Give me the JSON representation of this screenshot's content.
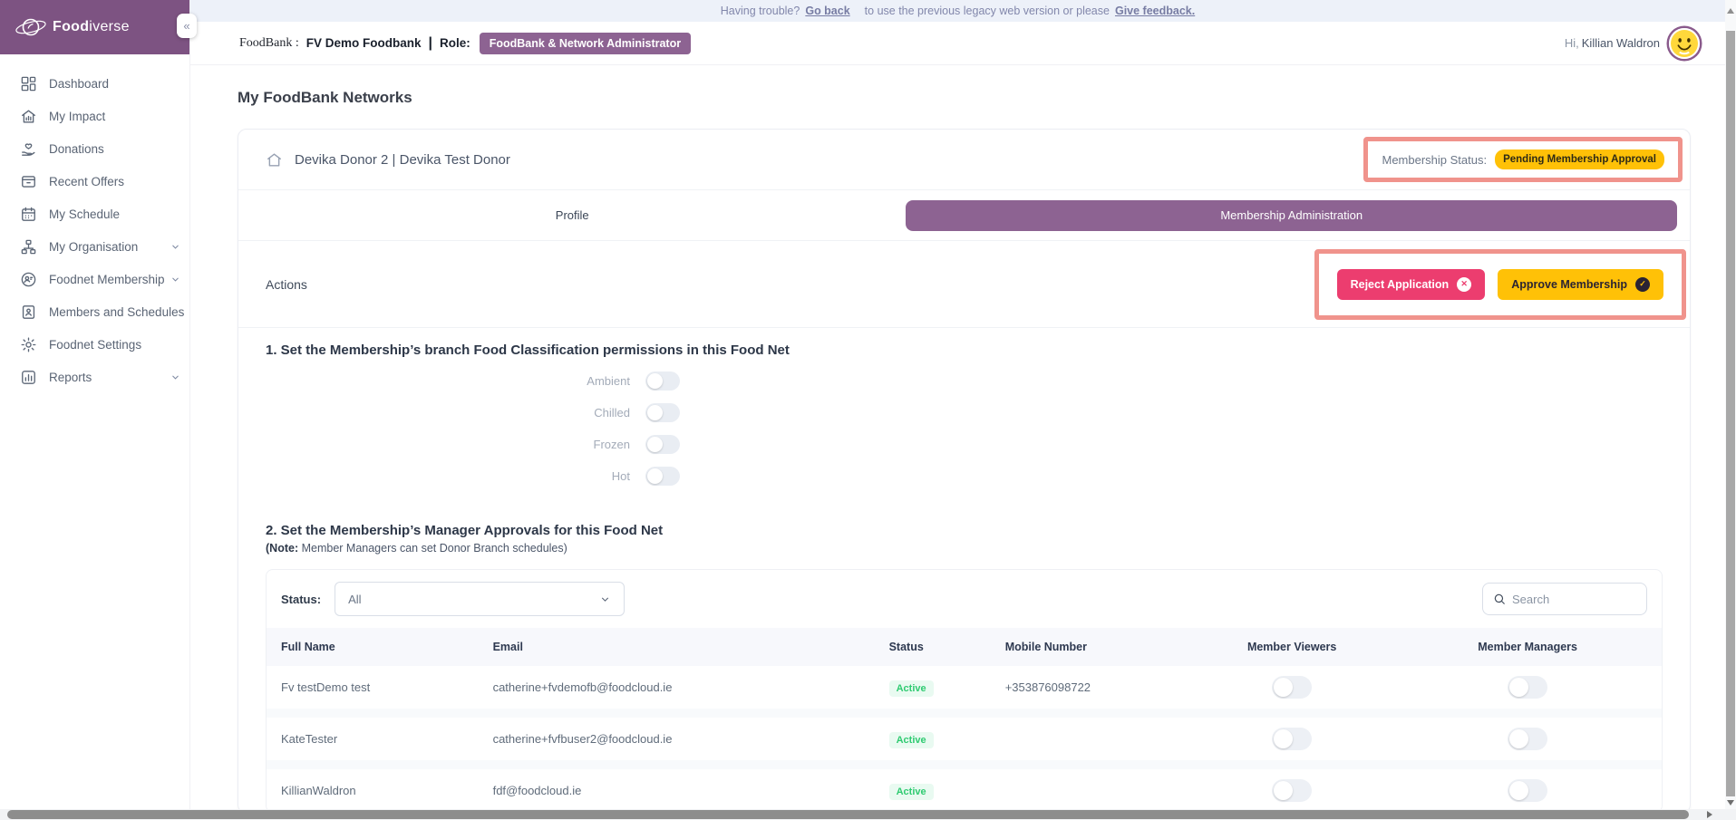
{
  "colors": {
    "brand-purple": "#7d5382",
    "badge-purple": "#8d6392",
    "tab-purple": "#8d6392",
    "accent-yellow": "#ffc107",
    "accent-pink": "#ec3d6f",
    "highlight-salmon": "#f0938c",
    "active-green": "#2fcb71",
    "active-green-bg": "#e9faf1"
  },
  "banner": {
    "prefix": "Having trouble?",
    "go_back_link": "Go back",
    "middle": "to use the previous legacy web version or please",
    "feedback_link": "Give feedback."
  },
  "sidebar": {
    "logo_bold": "Food",
    "logo_light": "iverse",
    "collapse_glyph": "«",
    "items": [
      {
        "label": "Dashboard",
        "icon": "dashboard-icon",
        "chevron": false
      },
      {
        "label": "My Impact",
        "icon": "impact-icon",
        "chevron": false
      },
      {
        "label": "Donations",
        "icon": "donations-icon",
        "chevron": false
      },
      {
        "label": "Recent Offers",
        "icon": "offers-icon",
        "chevron": false
      },
      {
        "label": "My Schedule",
        "icon": "schedule-icon",
        "chevron": false
      },
      {
        "label": "My Organisation",
        "icon": "organisation-icon",
        "chevron": true
      },
      {
        "label": "Foodnet Membership",
        "icon": "membership-icon",
        "chevron": true
      },
      {
        "label": "Members and Schedules",
        "icon": "members-icon",
        "chevron": false
      },
      {
        "label": "Foodnet Settings",
        "icon": "settings-icon",
        "chevron": false
      },
      {
        "label": "Reports",
        "icon": "reports-icon",
        "chevron": true
      }
    ]
  },
  "topbar": {
    "foodbank_label": "FoodBank :",
    "foodbank_name": "FV Demo Foodbank",
    "divider": "|",
    "role_label": "Role:",
    "role_value": "FoodBank & Network Administrator",
    "greeting": "Hi,",
    "user_name": "Killian Waldron"
  },
  "page": {
    "title": "My FoodBank Networks"
  },
  "network_card": {
    "name": "Devika Donor 2 | Devika Test Donor",
    "membership_status_label": "Membership Status:",
    "membership_status_value": "Pending Membership Approval",
    "tabs": [
      {
        "label": "Profile",
        "active": false
      },
      {
        "label": "Membership Administration",
        "active": true
      }
    ],
    "actions_title": "Actions",
    "reject_button": "Reject Application",
    "approve_button": "Approve Membership",
    "section1_title": "1. Set the Membership’s branch Food Classification permissions in this Food Net",
    "food_toggles": [
      {
        "label": "Ambient",
        "enabled": false
      },
      {
        "label": "Chilled",
        "enabled": false
      },
      {
        "label": "Frozen",
        "enabled": false
      },
      {
        "label": "Hot",
        "enabled": false
      }
    ],
    "section2_title": "2. Set the Membership’s Manager Approvals for this Food Net",
    "section2_note_open": "(",
    "section2_note_bold": "Note:",
    "section2_note_rest": " Member Managers can set Donor Branch schedules)",
    "filter": {
      "status_label": "Status:",
      "status_value": "All",
      "search_placeholder": "Search"
    },
    "table": {
      "columns": [
        "Full Name",
        "Email",
        "Status",
        "Mobile Number",
        "Member Viewers",
        "Member Managers"
      ],
      "rows": [
        {
          "full_name": "Fv testDemo test",
          "email": "catherine+fvdemofb@foodcloud.ie",
          "status": "Active",
          "mobile": "+353876098722",
          "member_viewer": false,
          "member_manager": false
        },
        {
          "full_name": "KateTester",
          "email": "catherine+fvfbuser2@foodcloud.ie",
          "status": "Active",
          "mobile": "",
          "member_viewer": false,
          "member_manager": false
        },
        {
          "full_name": "KillianWaldron",
          "email": "fdf@foodcloud.ie",
          "status": "Active",
          "mobile": "",
          "member_viewer": false,
          "member_manager": false
        }
      ]
    }
  }
}
